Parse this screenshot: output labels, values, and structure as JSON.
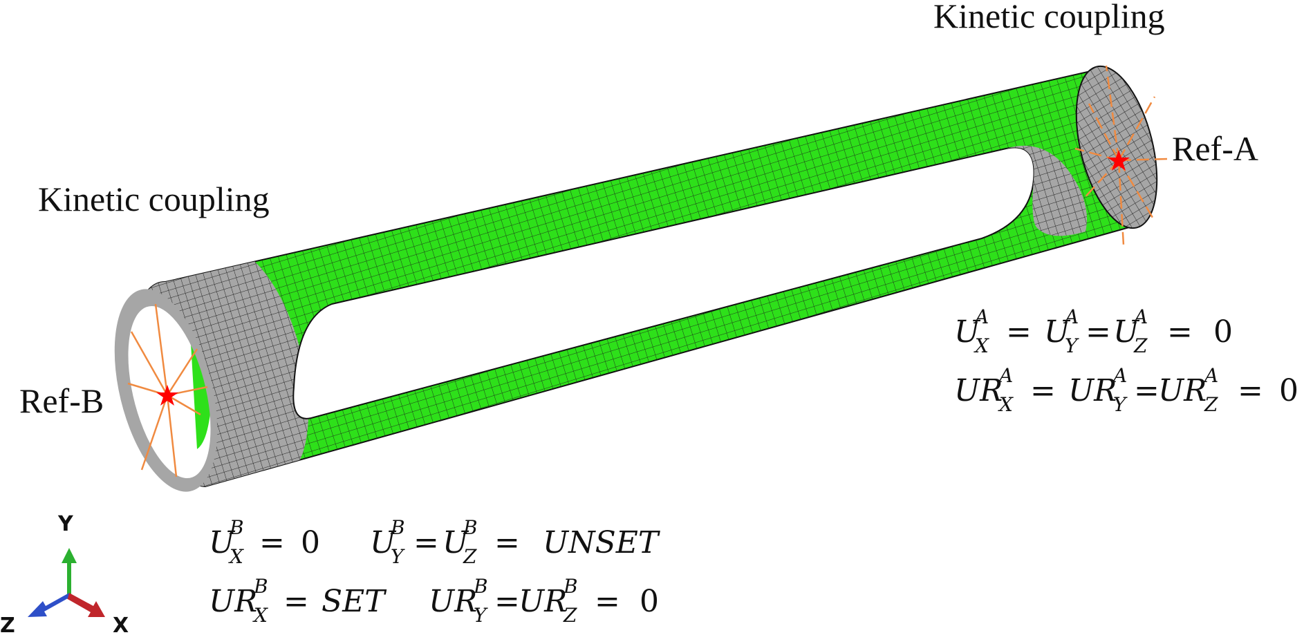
{
  "labels": {
    "kinetic_coupling_top": "Kinetic coupling",
    "kinetic_coupling_left": "Kinetic coupling",
    "ref_a": "Ref-A",
    "ref_b": "Ref-B"
  },
  "equations": {
    "a_line1": {
      "t1": "U",
      "t1_sub": "X",
      "t1_sup": "A",
      "eq1": "=",
      "t2": "U",
      "t2_sub": "Y",
      "t2_sup": "A",
      "eq2": "=",
      "t3": "U",
      "t3_sub": "Z",
      "t3_sup": "A",
      "eq3": "=",
      "rhs": "0"
    },
    "a_line2": {
      "t1": "UR",
      "t1_sub": "X",
      "t1_sup": "A",
      "eq1": "=",
      "t2": "UR",
      "t2_sub": "Y",
      "t2_sup": "A",
      "eq2": "=",
      "t3": "UR",
      "t3_sub": "Z",
      "t3_sup": "A",
      "eq3": "=",
      "rhs": "0"
    },
    "b_line1": {
      "t1": "U",
      "t1_sub": "X",
      "t1_sup": "B",
      "eq1": "=",
      "rhs1": "0",
      "t2": "U",
      "t2_sub": "Y",
      "t2_sup": "B",
      "eq2": "=",
      "t3": "U",
      "t3_sub": "Z",
      "t3_sup": "B",
      "eq3": "=",
      "rhs2": "UNSET"
    },
    "b_line2": {
      "t1": "UR",
      "t1_sub": "X",
      "t1_sup": "B",
      "eq1": "=",
      "rhs1": "SET",
      "t2": "UR",
      "t2_sub": "Y",
      "t2_sup": "B",
      "eq2": "=",
      "t3": "UR",
      "t3_sub": "Z",
      "t3_sup": "B",
      "eq3": "=",
      "rhs2": "0"
    }
  },
  "triad": {
    "x": "X",
    "y": "Y",
    "z": "Z"
  },
  "colors": {
    "mesh_green": "#2ee01a",
    "mesh_grey": "#a6a6a6",
    "mesh_line": "#1a1a1a",
    "coupling_line": "#f08a40",
    "ref_point": "#ff0000",
    "axis_x": "#c0262b",
    "axis_y": "#2bb030",
    "axis_z": "#2e4fc8"
  }
}
